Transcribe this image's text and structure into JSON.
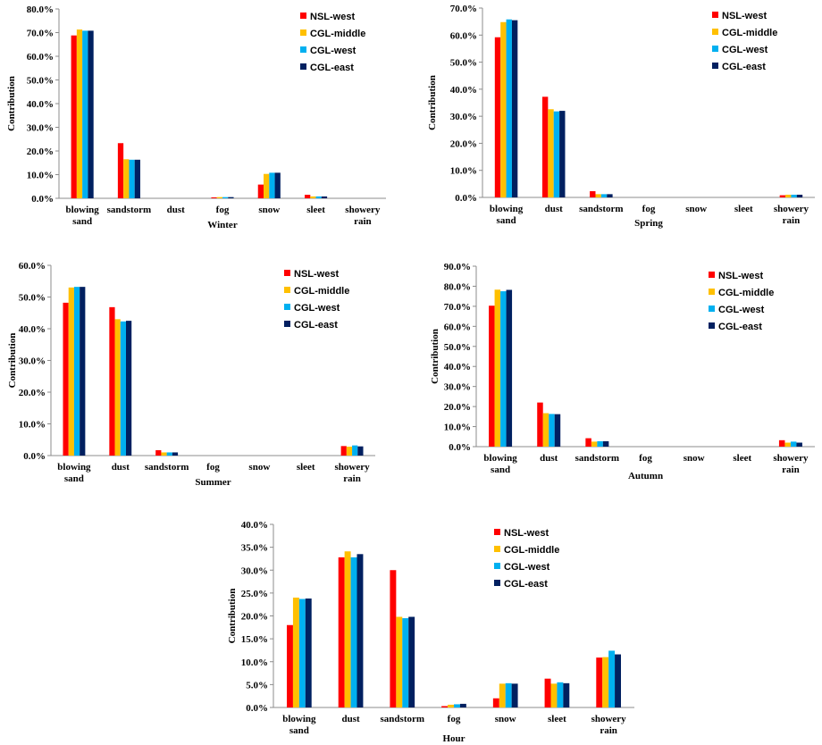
{
  "chart_data": [
    {
      "type": "bar",
      "title": "",
      "xlabel": "Winter",
      "ylabel": "Contribution",
      "ylim": [
        0,
        0.8
      ],
      "yticks": [
        "0.0%",
        "10.0%",
        "20.0%",
        "30.0%",
        "40.0%",
        "50.0%",
        "60.0%",
        "70.0%",
        "80.0%"
      ],
      "categories": [
        "blowing sand",
        "sandstorm",
        "dust",
        "fog",
        "snow",
        "sleet",
        "showery rain"
      ],
      "series": [
        {
          "name": "NSL-west",
          "color": "#ff0000",
          "values": [
            0.688,
            0.233,
            0.0,
            0.004,
            0.058,
            0.015,
            0.0
          ]
        },
        {
          "name": "CGL-middle",
          "color": "#ffc000",
          "values": [
            0.713,
            0.165,
            0.0,
            0.005,
            0.103,
            0.008,
            0.0
          ]
        },
        {
          "name": "CGL-west",
          "color": "#00b0f0",
          "values": [
            0.708,
            0.163,
            0.0,
            0.005,
            0.108,
            0.008,
            0.0
          ]
        },
        {
          "name": "CGL-east",
          "color": "#002060",
          "values": [
            0.708,
            0.163,
            0.0,
            0.005,
            0.108,
            0.008,
            0.0
          ]
        }
      ],
      "legend": "top-right"
    },
    {
      "type": "bar",
      "title": "",
      "xlabel": "Spring",
      "ylabel": "Contribution",
      "ylim": [
        0,
        0.7
      ],
      "yticks": [
        "0.0%",
        "10.0%",
        "20.0%",
        "30.0%",
        "40.0%",
        "50.0%",
        "60.0%",
        "70.0%"
      ],
      "categories": [
        "blowing sand",
        "dust",
        "sandstorm",
        "fog",
        "snow",
        "sleet",
        "showery rain"
      ],
      "series": [
        {
          "name": "NSL-west",
          "color": "#ff0000",
          "values": [
            0.592,
            0.372,
            0.023,
            0.0,
            0.0,
            0.0,
            0.008
          ]
        },
        {
          "name": "CGL-middle",
          "color": "#ffc000",
          "values": [
            0.648,
            0.326,
            0.012,
            0.0,
            0.0,
            0.0,
            0.01
          ]
        },
        {
          "name": "CGL-west",
          "color": "#00b0f0",
          "values": [
            0.658,
            0.318,
            0.012,
            0.0,
            0.0,
            0.0,
            0.01
          ]
        },
        {
          "name": "CGL-east",
          "color": "#002060",
          "values": [
            0.655,
            0.32,
            0.012,
            0.0,
            0.0,
            0.0,
            0.01
          ]
        }
      ],
      "legend": "top-right"
    },
    {
      "type": "bar",
      "title": "",
      "xlabel": "Summer",
      "ylabel": "Contribution",
      "ylim": [
        0,
        0.6
      ],
      "yticks": [
        "0.0%",
        "10.0%",
        "20.0%",
        "30.0%",
        "40.0%",
        "50.0%",
        "60.0%"
      ],
      "categories": [
        "blowing sand",
        "dust",
        "sandstorm",
        "fog",
        "snow",
        "sleet",
        "showery rain"
      ],
      "series": [
        {
          "name": "NSL-west",
          "color": "#ff0000",
          "values": [
            0.482,
            0.468,
            0.017,
            0.0,
            0.0,
            0.0,
            0.03
          ]
        },
        {
          "name": "CGL-middle",
          "color": "#ffc000",
          "values": [
            0.53,
            0.43,
            0.01,
            0.0,
            0.0,
            0.0,
            0.028
          ]
        },
        {
          "name": "CGL-west",
          "color": "#00b0f0",
          "values": [
            0.532,
            0.423,
            0.01,
            0.0,
            0.0,
            0.0,
            0.032
          ]
        },
        {
          "name": "CGL-east",
          "color": "#002060",
          "values": [
            0.532,
            0.425,
            0.01,
            0.0,
            0.0,
            0.0,
            0.029
          ]
        }
      ],
      "legend": "top-right"
    },
    {
      "type": "bar",
      "title": "",
      "xlabel": "Autumn",
      "ylabel": "Contribution",
      "ylim": [
        0,
        0.9
      ],
      "yticks": [
        "0.0%",
        "10.0%",
        "20.0%",
        "30.0%",
        "40.0%",
        "50.0%",
        "60.0%",
        "70.0%",
        "80.0%",
        "90.0%"
      ],
      "categories": [
        "blowing sand",
        "dust",
        "sandstorm",
        "fog",
        "snow",
        "sleet",
        "showery rain"
      ],
      "series": [
        {
          "name": "NSL-west",
          "color": "#ff0000",
          "values": [
            0.703,
            0.22,
            0.042,
            0.0,
            0.0,
            0.0,
            0.032
          ]
        },
        {
          "name": "CGL-middle",
          "color": "#ffc000",
          "values": [
            0.783,
            0.167,
            0.025,
            0.0,
            0.0,
            0.0,
            0.02
          ]
        },
        {
          "name": "CGL-west",
          "color": "#00b0f0",
          "values": [
            0.775,
            0.163,
            0.027,
            0.0,
            0.0,
            0.0,
            0.025
          ]
        },
        {
          "name": "CGL-east",
          "color": "#002060",
          "values": [
            0.782,
            0.162,
            0.027,
            0.0,
            0.0,
            0.0,
            0.02
          ]
        }
      ],
      "legend": "top-right"
    },
    {
      "type": "bar",
      "title": "",
      "xlabel": "Hour",
      "ylabel": "Contribution",
      "ylim": [
        0,
        0.4
      ],
      "yticks": [
        "0.0%",
        "5.0%",
        "10.0%",
        "15.0%",
        "20.0%",
        "25.0%",
        "30.0%",
        "35.0%",
        "40.0%"
      ],
      "categories": [
        "blowing sand",
        "dust",
        "sandstorm",
        "fog",
        "snow",
        "sleet",
        "showery rain"
      ],
      "series": [
        {
          "name": "NSL-west",
          "color": "#ff0000",
          "values": [
            0.18,
            0.328,
            0.3,
            0.003,
            0.02,
            0.063,
            0.109
          ]
        },
        {
          "name": "CGL-middle",
          "color": "#ffc000",
          "values": [
            0.24,
            0.341,
            0.198,
            0.006,
            0.052,
            0.052,
            0.11
          ]
        },
        {
          "name": "CGL-west",
          "color": "#00b0f0",
          "values": [
            0.237,
            0.328,
            0.195,
            0.007,
            0.053,
            0.055,
            0.124
          ]
        },
        {
          "name": "CGL-east",
          "color": "#002060",
          "values": [
            0.238,
            0.335,
            0.198,
            0.008,
            0.052,
            0.053,
            0.116
          ]
        }
      ],
      "legend": "top-right"
    }
  ]
}
